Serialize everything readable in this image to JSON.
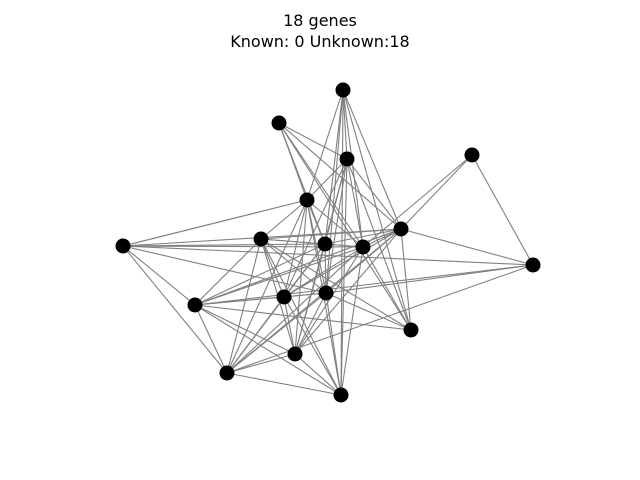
{
  "header": {
    "title_line1": "18 genes",
    "title_line2": "Known: 0 Unknown:18"
  },
  "colors": {
    "node": "#000000",
    "edge": "#808080",
    "background": "#ffffff"
  },
  "graph": {
    "nodes": [
      "n0",
      "n1",
      "n2",
      "n3",
      "n4",
      "n5",
      "n6",
      "n7",
      "n8",
      "n9",
      "n10",
      "n11",
      "n12",
      "n13",
      "n14",
      "n15",
      "n16",
      "n17"
    ],
    "edges": [
      [
        "n0",
        "n2"
      ],
      [
        "n0",
        "n5"
      ],
      [
        "n0",
        "n6"
      ],
      [
        "n0",
        "n9"
      ],
      [
        "n0",
        "n10"
      ],
      [
        "n0",
        "n12"
      ],
      [
        "n0",
        "n13"
      ],
      [
        "n0",
        "n16"
      ],
      [
        "n1",
        "n2"
      ],
      [
        "n1",
        "n5"
      ],
      [
        "n1",
        "n6"
      ],
      [
        "n1",
        "n9"
      ],
      [
        "n1",
        "n10"
      ],
      [
        "n1",
        "n12"
      ],
      [
        "n2",
        "n5"
      ],
      [
        "n2",
        "n6"
      ],
      [
        "n2",
        "n9"
      ],
      [
        "n2",
        "n10"
      ],
      [
        "n2",
        "n11"
      ],
      [
        "n2",
        "n12"
      ],
      [
        "n2",
        "n13"
      ],
      [
        "n2",
        "n16"
      ],
      [
        "n2",
        "n17"
      ],
      [
        "n3",
        "n4"
      ],
      [
        "n3",
        "n5"
      ],
      [
        "n3",
        "n10"
      ],
      [
        "n4",
        "n5"
      ],
      [
        "n4",
        "n7"
      ],
      [
        "n4",
        "n13"
      ],
      [
        "n4",
        "n14"
      ],
      [
        "n4",
        "n15"
      ],
      [
        "n5",
        "n7"
      ],
      [
        "n5",
        "n8"
      ],
      [
        "n5",
        "n9"
      ],
      [
        "n5",
        "n10"
      ],
      [
        "n5",
        "n11"
      ],
      [
        "n5",
        "n12"
      ],
      [
        "n5",
        "n13"
      ],
      [
        "n5",
        "n14"
      ],
      [
        "n5",
        "n15"
      ],
      [
        "n5",
        "n17"
      ],
      [
        "n6",
        "n7"
      ],
      [
        "n6",
        "n8"
      ],
      [
        "n6",
        "n9"
      ],
      [
        "n6",
        "n10"
      ],
      [
        "n6",
        "n11"
      ],
      [
        "n6",
        "n13"
      ],
      [
        "n6",
        "n15"
      ],
      [
        "n6",
        "n16"
      ],
      [
        "n6",
        "n17"
      ],
      [
        "n7",
        "n9"
      ],
      [
        "n7",
        "n10"
      ],
      [
        "n7",
        "n13"
      ],
      [
        "n7",
        "n14"
      ],
      [
        "n7",
        "n15"
      ],
      [
        "n8",
        "n9"
      ],
      [
        "n8",
        "n10"
      ],
      [
        "n8",
        "n11"
      ],
      [
        "n8",
        "n12"
      ],
      [
        "n8",
        "n13"
      ],
      [
        "n8",
        "n14"
      ],
      [
        "n8",
        "n15"
      ],
      [
        "n8",
        "n16"
      ],
      [
        "n8",
        "n17"
      ],
      [
        "n9",
        "n10"
      ],
      [
        "n9",
        "n11"
      ],
      [
        "n9",
        "n13"
      ],
      [
        "n9",
        "n14"
      ],
      [
        "n9",
        "n15"
      ],
      [
        "n9",
        "n17"
      ],
      [
        "n10",
        "n11"
      ],
      [
        "n10",
        "n12"
      ],
      [
        "n10",
        "n14"
      ],
      [
        "n10",
        "n15"
      ],
      [
        "n10",
        "n16"
      ],
      [
        "n10",
        "n17"
      ],
      [
        "n11",
        "n13"
      ],
      [
        "n11",
        "n14"
      ],
      [
        "n11",
        "n15"
      ],
      [
        "n11",
        "n16"
      ],
      [
        "n11",
        "n17"
      ],
      [
        "n12",
        "n13"
      ],
      [
        "n12",
        "n14"
      ],
      [
        "n13",
        "n14"
      ],
      [
        "n13",
        "n15"
      ],
      [
        "n13",
        "n16"
      ],
      [
        "n13",
        "n17"
      ],
      [
        "n14",
        "n15"
      ],
      [
        "n14",
        "n16"
      ],
      [
        "n14",
        "n17"
      ],
      [
        "n15",
        "n16"
      ],
      [
        "n15",
        "n17"
      ],
      [
        "n16",
        "n17"
      ]
    ]
  }
}
